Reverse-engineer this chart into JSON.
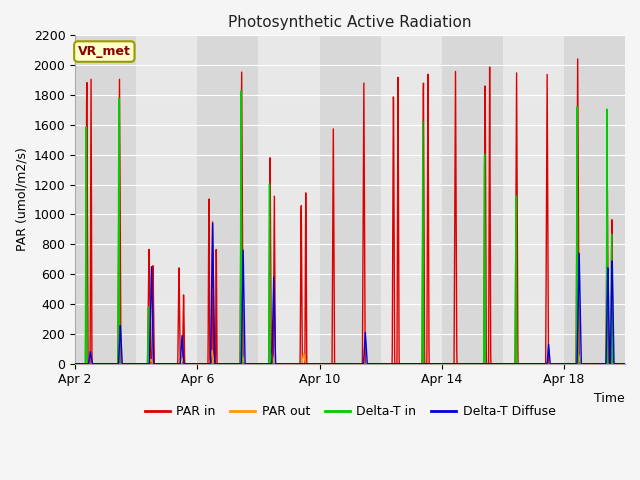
{
  "title": "Photosynthetic Active Radiation",
  "ylabel": "PAR (umol/m2/s)",
  "xlabel": "Time",
  "annotation": "VR_met",
  "ylim": [
    0,
    2200
  ],
  "fig_bg": "#f5f5f5",
  "plot_bg_light": "#e8e8e8",
  "plot_bg_dark": "#d8d8d8",
  "grid_color": "#ffffff",
  "series": {
    "PAR_in": {
      "color": "#dd0000",
      "lw": 1.0
    },
    "PAR_out": {
      "color": "#ff9900",
      "lw": 1.0
    },
    "Delta_T_in": {
      "color": "#00cc00",
      "lw": 1.0
    },
    "Delta_T_Diffuse": {
      "color": "#0000dd",
      "lw": 1.0
    }
  },
  "xtick_labels": [
    "Apr 2",
    "Apr 6",
    "Apr 10",
    "Apr 14",
    "Apr 18"
  ],
  "xtick_positions": [
    0,
    4,
    8,
    12,
    16
  ],
  "ytick_values": [
    0,
    200,
    400,
    600,
    800,
    1000,
    1200,
    1400,
    1600,
    1800,
    2000,
    2200
  ],
  "n_days": 18,
  "pts_per_day": 144
}
